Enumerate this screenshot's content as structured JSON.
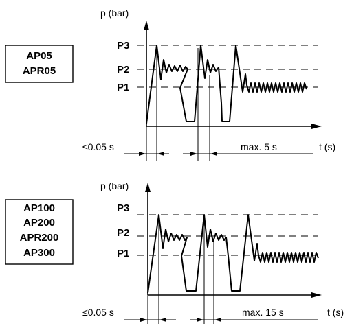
{
  "diagram_top": {
    "models": [
      "AP05",
      "APR05"
    ],
    "y_axis_label": "p (bar)",
    "x_axis_label": "t (s)",
    "levels": [
      "P3",
      "P2",
      "P1"
    ],
    "timing_short": "≤0.05 s",
    "timing_max": "max. 5 s"
  },
  "diagram_bottom": {
    "models": [
      "AP100",
      "AP200",
      "APR200",
      "AP300"
    ],
    "y_axis_label": "p (bar)",
    "x_axis_label": "t (s)",
    "levels": [
      "P3",
      "P2",
      "P1"
    ],
    "timing_short": "≤0.05 s",
    "timing_max": "max. 15 s"
  }
}
